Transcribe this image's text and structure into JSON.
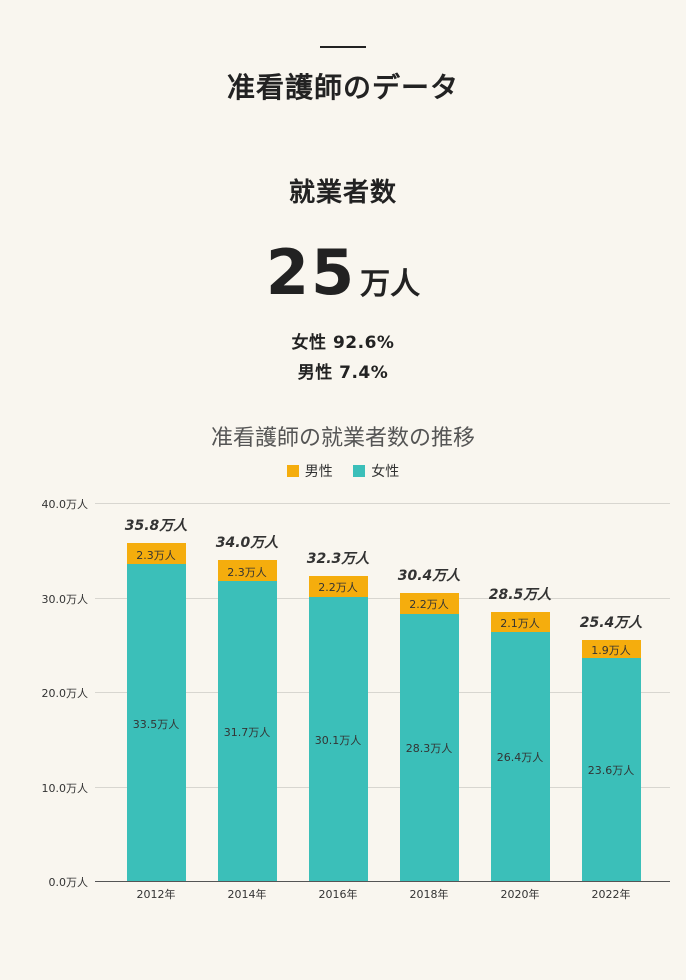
{
  "header": {
    "title": "准看護師のデータ"
  },
  "employment": {
    "section_title": "就業者数",
    "value": "25",
    "unit": "万人",
    "female_ratio": "女性 92.6%",
    "male_ratio": "男性 7.4%"
  },
  "colors": {
    "male": "#f5ad0d",
    "female": "#3bbfb9",
    "background": "#f9f6ef"
  },
  "chart_data": {
    "type": "bar",
    "stacked": true,
    "title": "准看護師の就業者数の推移",
    "xlabel": "",
    "ylabel": "",
    "categories": [
      "2012年",
      "2014年",
      "2016年",
      "2018年",
      "2020年",
      "2022年"
    ],
    "series": [
      {
        "name": "女性",
        "color": "#3bbfb9",
        "values": [
          33.5,
          31.7,
          30.1,
          28.3,
          26.4,
          23.6
        ],
        "labels": [
          "33.5万人",
          "31.7万人",
          "30.1万人",
          "28.3万人",
          "26.4万人",
          "23.6万人"
        ]
      },
      {
        "name": "男性",
        "color": "#f5ad0d",
        "values": [
          2.3,
          2.3,
          2.2,
          2.2,
          2.1,
          1.9
        ],
        "labels": [
          "2.3万人",
          "2.3万人",
          "2.2万人",
          "2.2万人",
          "2.1万人",
          "1.9万人"
        ]
      }
    ],
    "totals": [
      35.8,
      34.0,
      32.3,
      30.4,
      28.5,
      25.4
    ],
    "total_labels": [
      "35.8万人",
      "34.0万人",
      "32.3万人",
      "30.4万人",
      "28.5万人",
      "25.4万人"
    ],
    "legend": [
      "男性",
      "女性"
    ],
    "legend_position": "top",
    "yticks": [
      "0.0万人",
      "10.0万人",
      "20.0万人",
      "30.0万人",
      "40.0万人"
    ],
    "ylim": [
      0,
      40
    ],
    "grid": true
  }
}
